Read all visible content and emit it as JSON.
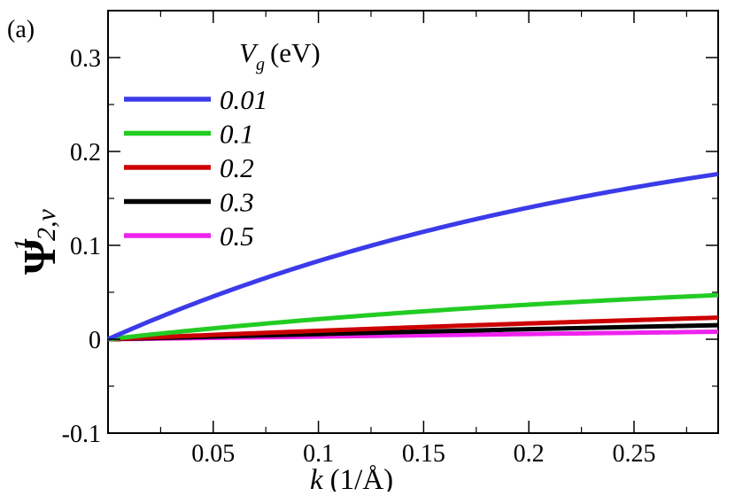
{
  "chart_data": {
    "type": "line",
    "panel_label": "(a)",
    "xlabel": "k (1/Å)",
    "xlabel_parts": {
      "var": "k",
      "unit": "(1/Å)"
    },
    "ylabel": "ψ^1_{2,v}",
    "ylabel_parts": {
      "symbol": "Ψ",
      "superscript": "1",
      "subscript": "2,v"
    },
    "xlim": [
      0,
      0.29
    ],
    "ylim": [
      -0.1,
      0.35
    ],
    "xticks": [
      0.05,
      0.1,
      0.15,
      0.2,
      0.25
    ],
    "xtick_labels": [
      "0.05",
      "0.1",
      "0.15",
      "0.2",
      "0.25"
    ],
    "yticks": [
      -0.1,
      0,
      0.1,
      0.2,
      0.3
    ],
    "ytick_labels": [
      "-0.1",
      "0",
      "0.1",
      "0.2",
      "0.3"
    ],
    "grid": false,
    "legend": {
      "title": "V_g (eV)",
      "title_parts": {
        "var": "V",
        "sub": "g",
        "unit": "(eV)"
      },
      "position": "top-left"
    },
    "series": [
      {
        "name": "0.01",
        "color": "#3b3bea",
        "k_max": 0.29,
        "y_max": 0.176,
        "curvature": 1.1
      },
      {
        "name": "0.1",
        "color": "#22cc22",
        "k_max": 0.29,
        "y_max": 0.047,
        "curvature": 0.95
      },
      {
        "name": "0.2",
        "color": "#cc0000",
        "k_max": 0.29,
        "y_max": 0.023,
        "curvature": 0.4
      },
      {
        "name": "0.3",
        "color": "#000000",
        "k_max": 0.29,
        "y_max": 0.015,
        "curvature": 0.2
      },
      {
        "name": "0.5",
        "color": "#ee22ee",
        "k_max": 0.29,
        "y_max": 0.008,
        "curvature": 0.05
      }
    ]
  }
}
